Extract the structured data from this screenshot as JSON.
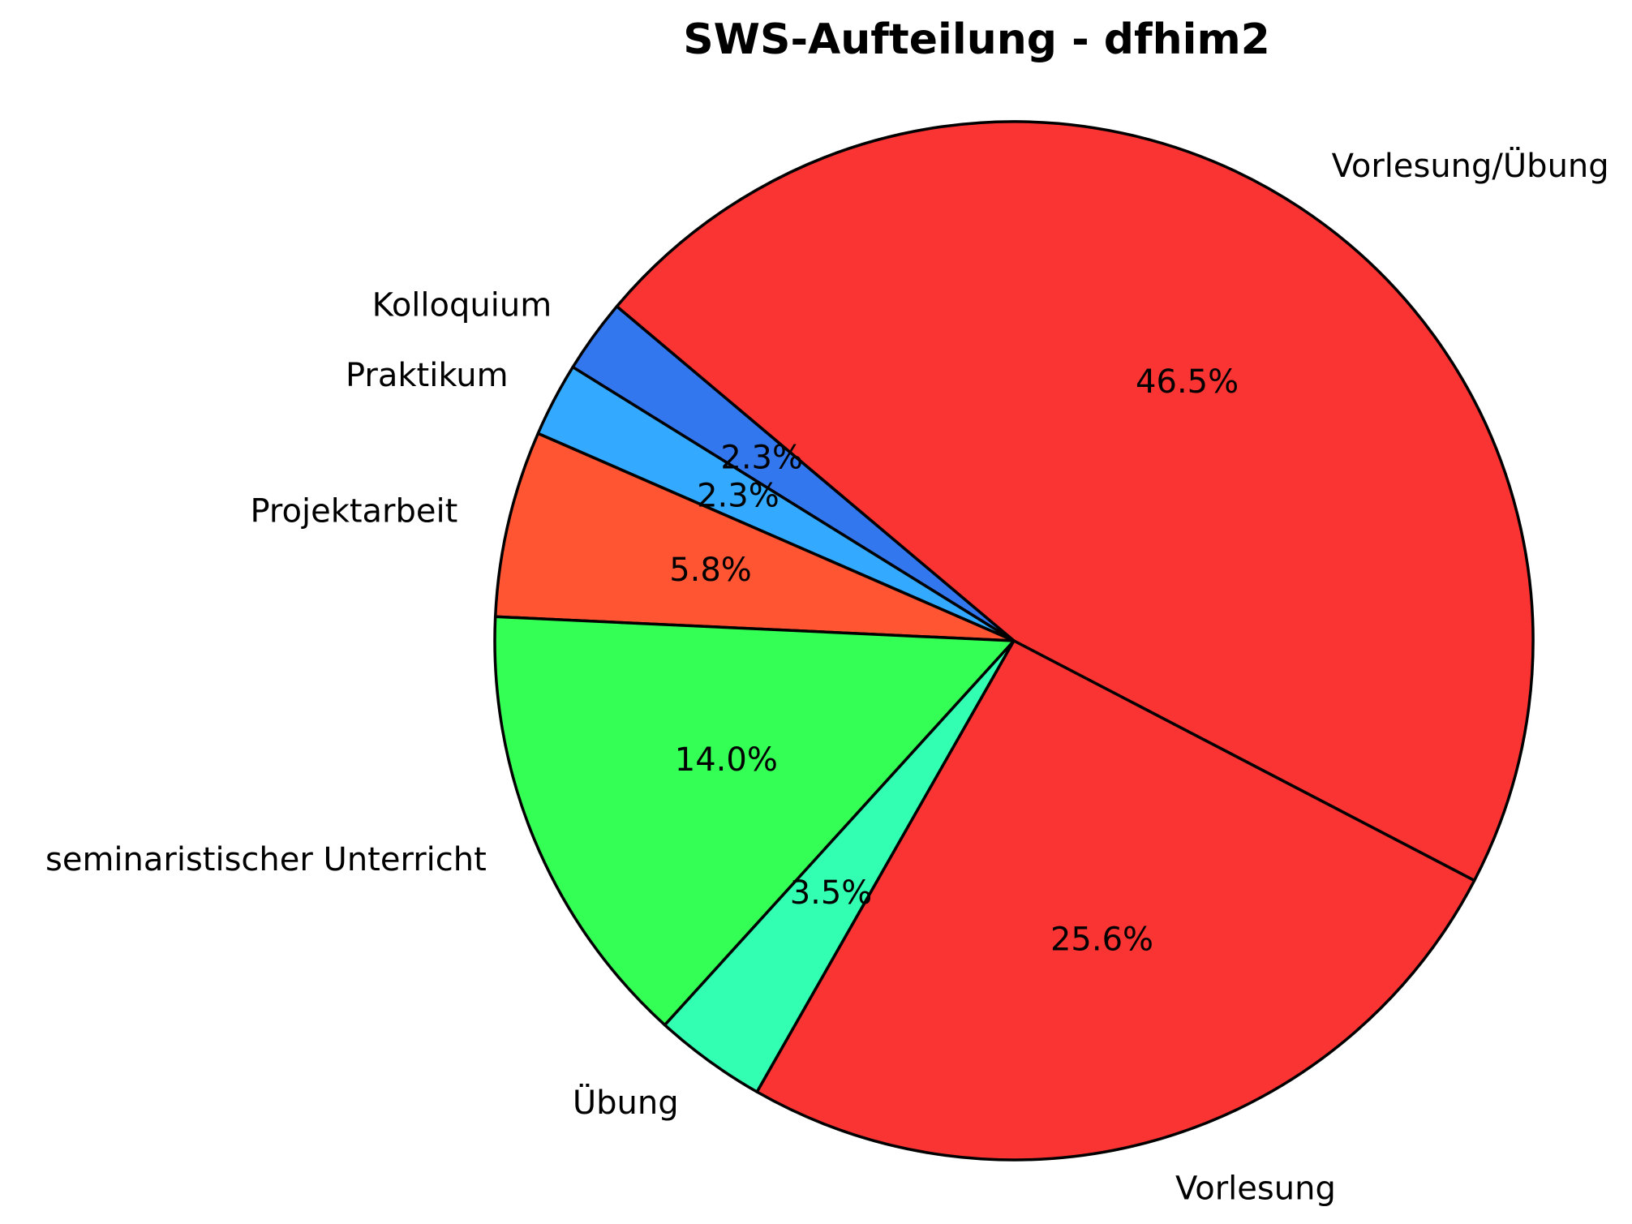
{
  "chart_data": {
    "type": "pie",
    "title": "SWS-Aufteilung - dfhim2",
    "slices": [
      {
        "label": "Vorlesung/Übung",
        "value": 46.5,
        "pct_label": "46.5%",
        "color": "#fa3333"
      },
      {
        "label": "Kolloquium",
        "value": 2.3,
        "pct_label": "2.3%",
        "color": "#3377ee"
      },
      {
        "label": "Praktikum",
        "value": 2.3,
        "pct_label": "2.3%",
        "color": "#33aaff"
      },
      {
        "label": "Projektarbeit",
        "value": 5.8,
        "pct_label": "5.8%",
        "color": "#ff5533"
      },
      {
        "label": "seminaristischer Unterricht",
        "value": 14.0,
        "pct_label": "14.0%",
        "color": "#33ff55"
      },
      {
        "label": "Übung",
        "value": 3.5,
        "pct_label": "3.5%",
        "color": "#33ffb3"
      },
      {
        "label": "Vorlesung",
        "value": 25.6,
        "pct_label": "25.6%",
        "color": "#fa3333"
      }
    ],
    "start_angle_deg": -27.5,
    "direction": "counterclockwise",
    "label_distance": 1.1,
    "pct_distance": 0.6,
    "edge_color": "#000000",
    "background": "#ffffff",
    "legend": "none"
  }
}
